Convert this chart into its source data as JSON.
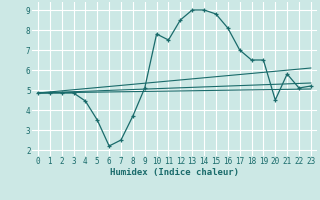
{
  "xlabel": "Humidex (Indice chaleur)",
  "bg_color": "#cce8e5",
  "grid_color": "#ffffff",
  "line_color": "#1a6b6b",
  "xlim": [
    -0.5,
    23.5
  ],
  "ylim": [
    1.7,
    9.4
  ],
  "yticks": [
    2,
    3,
    4,
    5,
    6,
    7,
    8,
    9
  ],
  "xticks": [
    0,
    1,
    2,
    3,
    4,
    5,
    6,
    7,
    8,
    9,
    10,
    11,
    12,
    13,
    14,
    15,
    16,
    17,
    18,
    19,
    20,
    21,
    22,
    23
  ],
  "line1_x": [
    0,
    1,
    2,
    3,
    4,
    5,
    6,
    7,
    8,
    9,
    10,
    11,
    12,
    13,
    14,
    15,
    16,
    17,
    18,
    19,
    20,
    21,
    22,
    23
  ],
  "line1_y": [
    4.85,
    4.85,
    4.85,
    4.85,
    4.45,
    3.5,
    2.2,
    2.5,
    3.7,
    5.1,
    7.8,
    7.5,
    8.5,
    9.0,
    9.0,
    8.8,
    8.1,
    7.0,
    6.5,
    6.5,
    4.5,
    5.8,
    5.1,
    5.2
  ],
  "line2_x": [
    0,
    23
  ],
  "line2_y": [
    4.85,
    5.05
  ],
  "line3_x": [
    0,
    23
  ],
  "line3_y": [
    4.85,
    5.35
  ],
  "line4_x": [
    0,
    23
  ],
  "line4_y": [
    4.85,
    6.1
  ]
}
